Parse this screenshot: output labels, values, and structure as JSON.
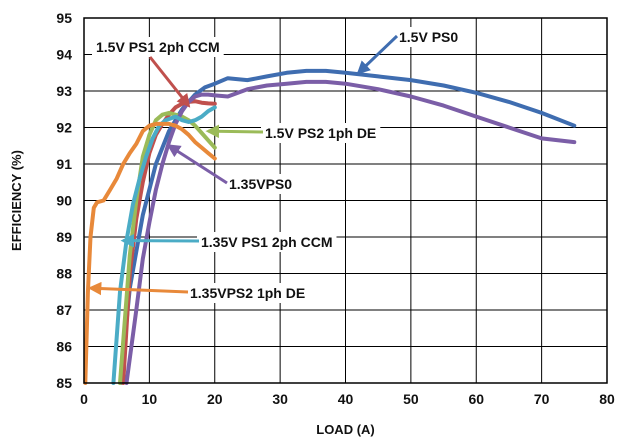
{
  "chart_data": {
    "type": "line",
    "title": "",
    "xlabel": "LOAD (A)",
    "ylabel": "EFFICIENCY (%)",
    "xlim": [
      0,
      80
    ],
    "ylim": [
      85,
      95
    ],
    "xticks": [
      "0",
      "10",
      "20",
      "30",
      "40",
      "50",
      "60",
      "70",
      "80"
    ],
    "yticks": [
      "85",
      "86",
      "87",
      "88",
      "89",
      "90",
      "91",
      "92",
      "93",
      "94",
      "95"
    ],
    "grid": true,
    "legend": "none (inline arrow annotations)",
    "series": [
      {
        "name": "1.5V PS0",
        "color": "#3f6db0",
        "x": [
          5.6,
          7,
          9,
          11,
          13,
          15,
          17,
          18.5,
          20,
          22,
          25,
          28,
          31,
          34,
          37,
          40,
          45,
          50,
          55,
          60,
          65,
          70,
          75
        ],
        "y": [
          85.0,
          87.6,
          89.6,
          91.0,
          91.9,
          92.5,
          92.9,
          93.1,
          93.2,
          93.35,
          93.3,
          93.4,
          93.5,
          93.55,
          93.55,
          93.5,
          93.4,
          93.3,
          93.15,
          92.95,
          92.7,
          92.4,
          92.05
        ]
      },
      {
        "name": "1.5V PS1 2ph CCM",
        "color": "#c0504d",
        "x": [
          6,
          7,
          8,
          9,
          10,
          11,
          12,
          13,
          14,
          15,
          16,
          17,
          18,
          19,
          20
        ],
        "y": [
          85.0,
          88.0,
          89.5,
          90.5,
          91.3,
          91.8,
          92.1,
          92.35,
          92.55,
          92.65,
          92.7,
          92.72,
          92.68,
          92.66,
          92.65
        ]
      },
      {
        "name": "1.5V PS2 1ph DE",
        "color": "#9bbb59",
        "x": [
          5.5,
          7,
          8,
          9,
          10,
          11,
          12,
          13,
          14,
          15,
          16,
          17,
          18,
          19,
          20
        ],
        "y": [
          85.0,
          88.5,
          90.0,
          91.2,
          91.8,
          92.2,
          92.35,
          92.4,
          92.35,
          92.3,
          92.2,
          92.05,
          91.85,
          91.65,
          91.45
        ]
      },
      {
        "name": "1.35VPS0",
        "color": "#7b5ea7",
        "x": [
          6.5,
          8,
          9,
          10,
          11,
          12,
          13,
          14,
          15,
          16,
          17,
          18,
          19,
          20,
          22,
          25,
          28,
          31,
          34,
          37,
          40,
          45,
          50,
          55,
          60,
          65,
          70,
          75
        ],
        "y": [
          85.0,
          87.0,
          88.4,
          89.4,
          90.3,
          91.0,
          91.6,
          92.1,
          92.45,
          92.7,
          92.85,
          92.9,
          92.9,
          92.88,
          92.85,
          93.05,
          93.15,
          93.2,
          93.25,
          93.25,
          93.2,
          93.05,
          92.85,
          92.6,
          92.3,
          92.0,
          91.7,
          91.6
        ]
      },
      {
        "name": "1.35V PS1 2ph CCM",
        "color": "#4bacc6",
        "x": [
          4.5,
          5.5,
          6.5,
          7.5,
          8.5,
          9.5,
          10.5,
          11.5,
          12.5,
          14,
          15,
          16,
          17,
          18,
          19,
          20
        ],
        "y": [
          85.0,
          87.5,
          88.9,
          89.9,
          90.6,
          91.2,
          91.7,
          92.05,
          92.2,
          92.3,
          92.2,
          92.15,
          92.2,
          92.3,
          92.45,
          92.55
        ]
      },
      {
        "name": "1.35VPS2 1ph DE",
        "color": "#e8893a",
        "x": [
          0.2,
          0.6,
          1.0,
          1.5,
          2,
          3,
          4,
          5,
          6,
          7,
          8,
          9,
          10,
          11,
          12,
          13,
          14,
          15,
          16,
          17,
          18,
          19,
          20
        ],
        "y": [
          85.0,
          87.5,
          89.0,
          89.8,
          89.95,
          90.0,
          90.3,
          90.6,
          91.0,
          91.3,
          91.55,
          91.9,
          92.05,
          92.1,
          92.1,
          92.1,
          92.05,
          91.95,
          91.8,
          91.6,
          91.45,
          91.3,
          91.15
        ]
      }
    ],
    "annotations": [
      {
        "text": "1.5V PS0",
        "series": 0,
        "target": [
          42,
          93.5
        ]
      },
      {
        "text": "1.5V PS1 2ph CCM",
        "series": 1,
        "target": [
          16,
          92.6
        ]
      },
      {
        "text": "1.5V PS2 1ph DE",
        "series": 2,
        "target": [
          19,
          91.9
        ]
      },
      {
        "text": "1.35VPS0",
        "series": 3,
        "target": [
          13,
          91.5
        ]
      },
      {
        "text": "1.35V PS1 2ph CCM",
        "series": 4,
        "target": [
          6,
          88.9
        ]
      },
      {
        "text": "1.35VPS2 1ph DE",
        "series": 5,
        "target": [
          1,
          87.6
        ]
      }
    ]
  }
}
